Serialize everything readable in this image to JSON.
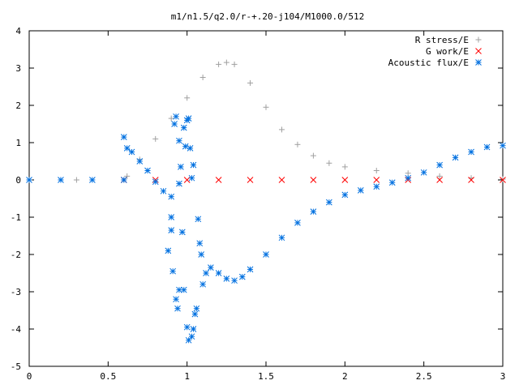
{
  "chart_data": {
    "type": "scatter",
    "title": "m1/n1.5/q2.0/r-+.20-j104/M1000.0/512",
    "xlabel": "",
    "ylabel": "",
    "xlim": [
      0,
      3
    ],
    "ylim": [
      -5,
      4
    ],
    "x_ticks": [
      "0",
      "0.5",
      "1",
      "1.5",
      "2",
      "2.5",
      "3"
    ],
    "y_ticks": [
      "-5",
      "-4",
      "-3",
      "-2",
      "-1",
      "0",
      "1",
      "2",
      "3",
      "4"
    ],
    "grid": false,
    "legend_position": "top-right",
    "series": [
      {
        "name": "R stress/E",
        "marker": "+",
        "color": "#a0a0a0",
        "points": [
          [
            0.0,
            0.0
          ],
          [
            0.3,
            0.0
          ],
          [
            0.6,
            0.0
          ],
          [
            0.62,
            0.1
          ],
          [
            0.7,
            0.55
          ],
          [
            0.8,
            1.1
          ],
          [
            0.9,
            1.65
          ],
          [
            1.0,
            2.2
          ],
          [
            1.1,
            2.75
          ],
          [
            1.2,
            3.1
          ],
          [
            1.25,
            3.15
          ],
          [
            1.3,
            3.1
          ],
          [
            1.4,
            2.6
          ],
          [
            1.5,
            1.95
          ],
          [
            1.6,
            1.35
          ],
          [
            1.7,
            0.95
          ],
          [
            1.8,
            0.65
          ],
          [
            1.9,
            0.45
          ],
          [
            2.0,
            0.35
          ],
          [
            2.2,
            0.25
          ],
          [
            2.4,
            0.18
          ],
          [
            2.6,
            0.1
          ],
          [
            2.8,
            0.05
          ],
          [
            3.0,
            0.02
          ]
        ]
      },
      {
        "name": "G work/E",
        "marker": "x",
        "color": "#ff0000",
        "points": [
          [
            0.6,
            0.0
          ],
          [
            0.8,
            0.0
          ],
          [
            1.0,
            0.0
          ],
          [
            1.2,
            0.0
          ],
          [
            1.4,
            0.0
          ],
          [
            1.6,
            0.0
          ],
          [
            1.8,
            0.0
          ],
          [
            2.0,
            0.0
          ],
          [
            2.2,
            0.0
          ],
          [
            2.4,
            0.0
          ],
          [
            2.6,
            0.0
          ],
          [
            2.8,
            0.0
          ],
          [
            3.0,
            0.0
          ]
        ]
      },
      {
        "name": "Acoustic flux/E",
        "marker": "*",
        "color": "#0070e0",
        "points": [
          [
            0.0,
            0.0
          ],
          [
            0.2,
            0.0
          ],
          [
            0.4,
            0.0
          ],
          [
            0.6,
            0.0
          ],
          [
            0.6,
            1.15
          ],
          [
            0.62,
            0.85
          ],
          [
            0.65,
            0.75
          ],
          [
            0.7,
            0.5
          ],
          [
            0.75,
            0.25
          ],
          [
            0.8,
            -0.05
          ],
          [
            0.85,
            -0.3
          ],
          [
            0.9,
            -0.45
          ],
          [
            0.95,
            -0.1
          ],
          [
            0.9,
            -1.0
          ],
          [
            0.9,
            -1.35
          ],
          [
            0.88,
            -1.9
          ],
          [
            0.91,
            -2.45
          ],
          [
            0.93,
            -3.2
          ],
          [
            0.94,
            -3.45
          ],
          [
            0.95,
            -2.95
          ],
          [
            0.98,
            -2.95
          ],
          [
            0.97,
            -1.4
          ],
          [
            1.0,
            -3.95
          ],
          [
            1.01,
            -4.3
          ],
          [
            1.03,
            -4.2
          ],
          [
            1.04,
            -4.0
          ],
          [
            1.05,
            -3.6
          ],
          [
            1.06,
            -3.45
          ],
          [
            1.07,
            -1.05
          ],
          [
            1.08,
            -1.7
          ],
          [
            1.09,
            -2.0
          ],
          [
            1.1,
            -2.8
          ],
          [
            1.12,
            -2.5
          ],
          [
            1.15,
            -2.35
          ],
          [
            1.2,
            -2.5
          ],
          [
            1.25,
            -2.65
          ],
          [
            1.3,
            -2.7
          ],
          [
            1.35,
            -2.6
          ],
          [
            1.4,
            -2.4
          ],
          [
            1.5,
            -2.0
          ],
          [
            1.6,
            -1.55
          ],
          [
            1.7,
            -1.15
          ],
          [
            1.8,
            -0.85
          ],
          [
            1.9,
            -0.6
          ],
          [
            2.0,
            -0.4
          ],
          [
            2.1,
            -0.28
          ],
          [
            2.2,
            -0.18
          ],
          [
            2.3,
            -0.07
          ],
          [
            2.4,
            0.05
          ],
          [
            2.5,
            0.2
          ],
          [
            2.6,
            0.4
          ],
          [
            2.7,
            0.6
          ],
          [
            2.8,
            0.75
          ],
          [
            2.9,
            0.88
          ],
          [
            3.0,
            0.92
          ],
          [
            0.92,
            1.5
          ],
          [
            0.93,
            1.7
          ],
          [
            0.95,
            1.05
          ],
          [
            0.96,
            0.35
          ],
          [
            0.98,
            1.4
          ],
          [
            0.99,
            0.9
          ],
          [
            1.0,
            1.6
          ],
          [
            1.01,
            1.65
          ],
          [
            1.02,
            0.85
          ],
          [
            1.04,
            0.4
          ],
          [
            1.03,
            0.05
          ]
        ]
      }
    ]
  }
}
